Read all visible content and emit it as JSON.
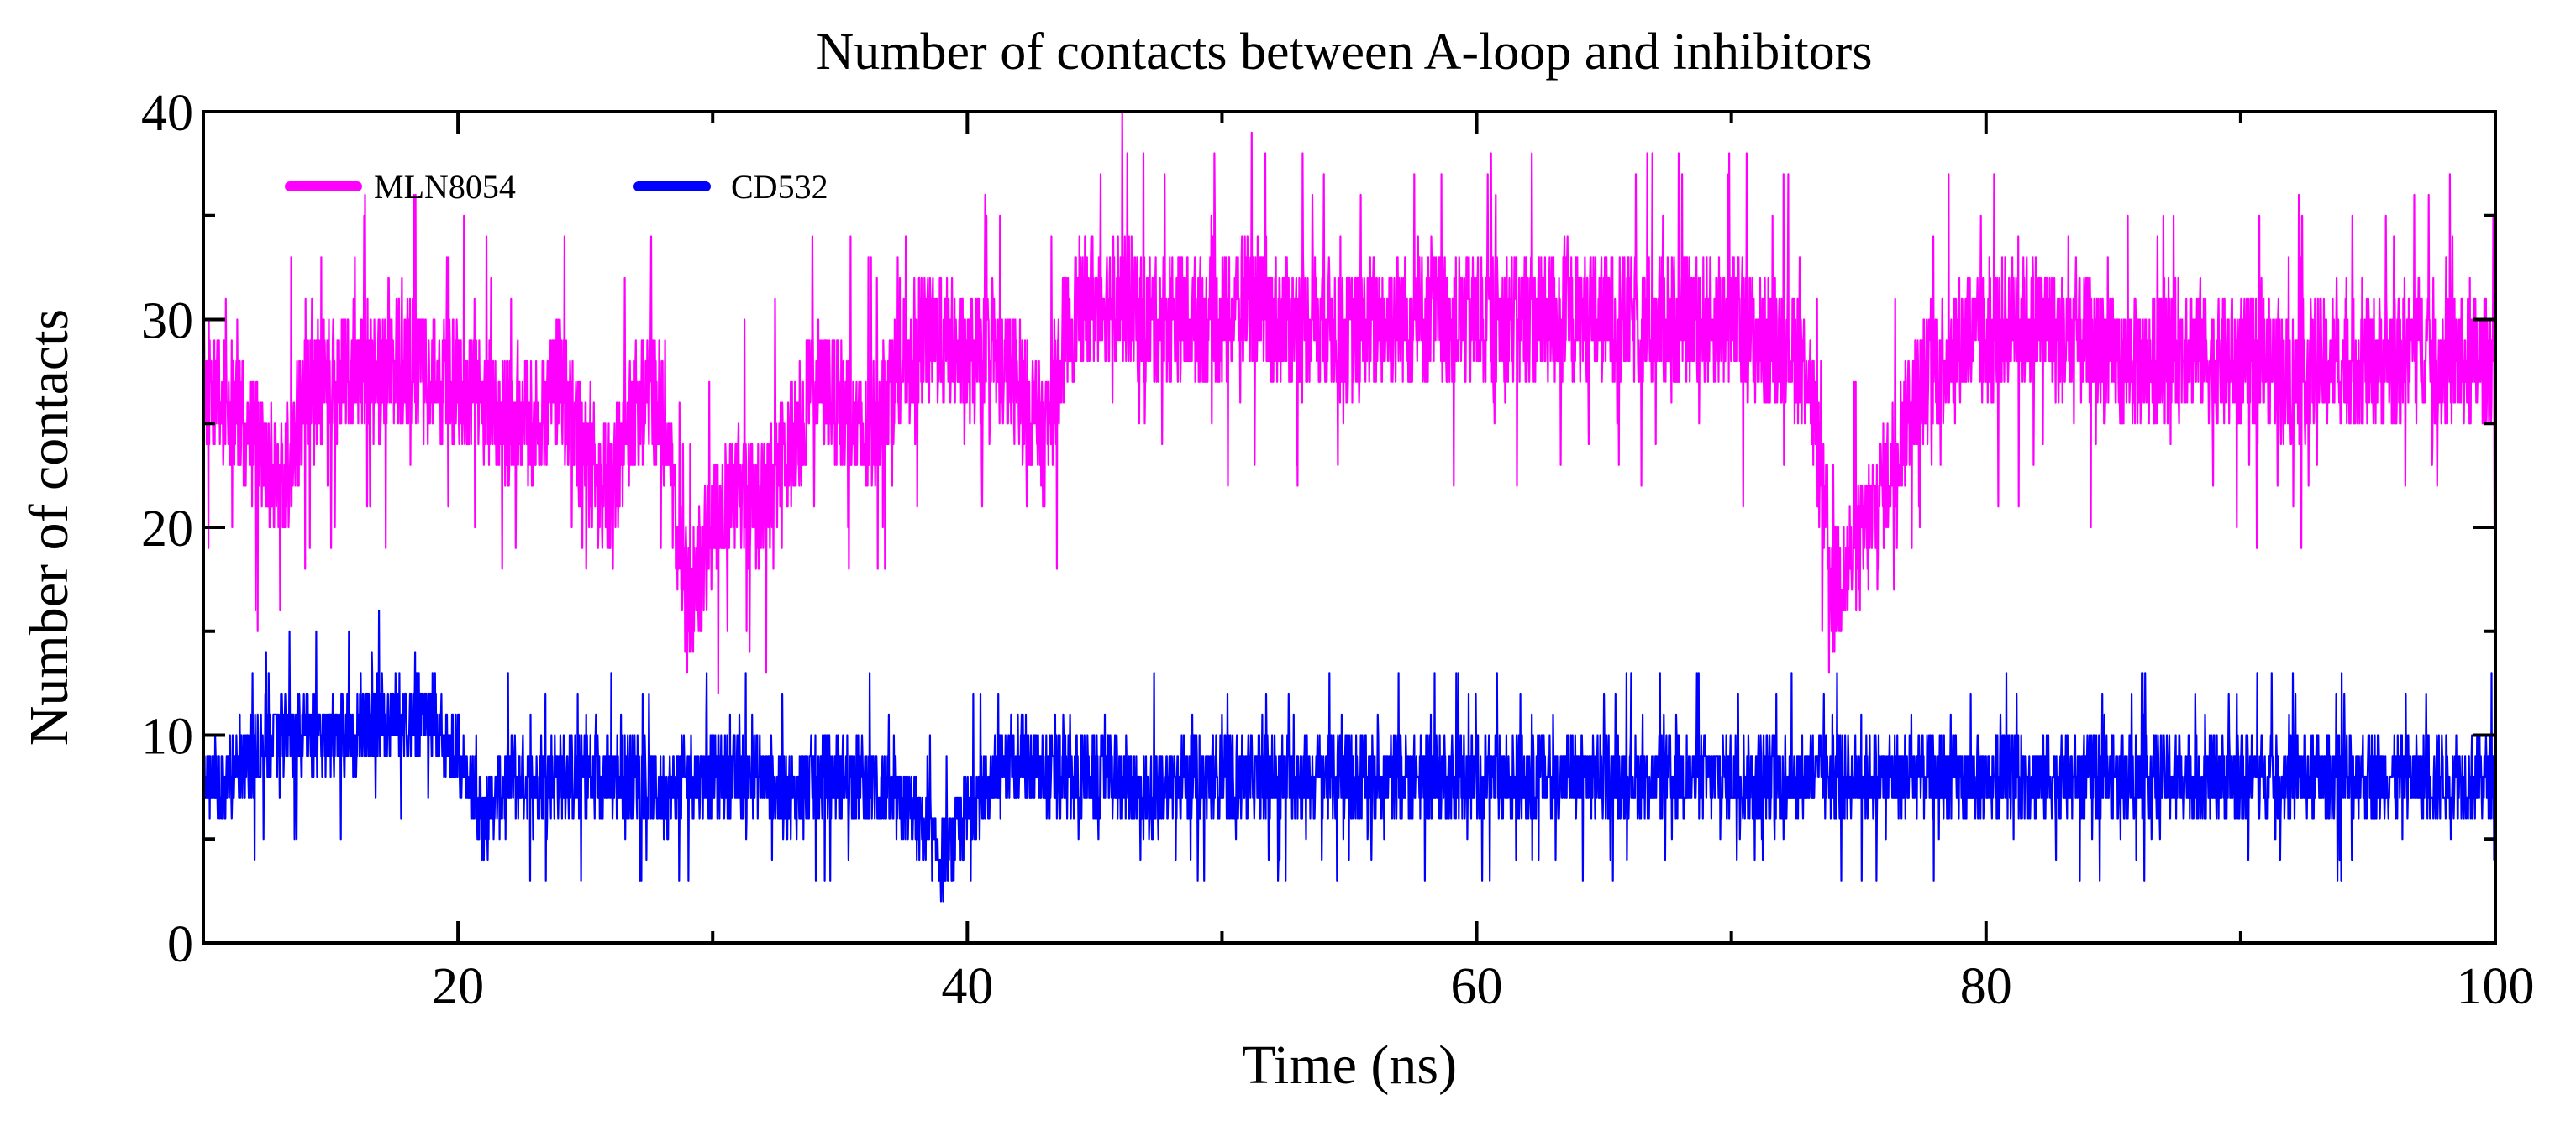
{
  "chart_data": {
    "type": "line",
    "title": "Number of contacts between A-loop and inhibitors",
    "xlabel": "Time (ns)",
    "ylabel": "Number of contacts",
    "xlim": [
      10,
      100
    ],
    "ylim": [
      0,
      40
    ],
    "x_ticks": [
      20,
      40,
      60,
      80,
      100
    ],
    "y_ticks": [
      0,
      10,
      20,
      30,
      40
    ],
    "legend_position": "top-left",
    "grid": false,
    "series": [
      {
        "name": "MLN8054",
        "color": "#ff00ff",
        "x": [
          10,
          11,
          12,
          13,
          14,
          15,
          16,
          17,
          18,
          19,
          20,
          21,
          22,
          23,
          24,
          25,
          26,
          27,
          28,
          29,
          30,
          31,
          32,
          33,
          34,
          35,
          36,
          37,
          38,
          39,
          40,
          41,
          42,
          43,
          44,
          45,
          46,
          47,
          48,
          49,
          50,
          51,
          52,
          53,
          54,
          55,
          56,
          57,
          58,
          59,
          60,
          61,
          62,
          63,
          64,
          65,
          66,
          67,
          68,
          69,
          70,
          71,
          72,
          73,
          74,
          75,
          76,
          77,
          78,
          79,
          80,
          81,
          82,
          83,
          84,
          85,
          86,
          87,
          88,
          89,
          90,
          91,
          92,
          93,
          94,
          95,
          96,
          97,
          98,
          99,
          100
        ],
        "values": [
          27,
          26,
          24,
          22,
          26,
          27,
          28,
          27,
          28,
          27,
          27,
          26,
          25,
          25,
          27,
          23,
          22,
          26,
          26,
          16,
          20,
          22,
          21,
          24,
          27,
          26,
          24,
          27,
          29,
          29,
          28,
          28,
          27,
          24,
          30,
          31,
          31,
          30,
          30,
          30,
          30,
          31,
          30,
          30,
          30,
          29,
          30,
          30,
          30,
          30,
          30,
          30,
          30,
          30,
          30,
          30,
          30,
          30,
          30,
          30,
          30,
          29,
          29,
          28,
          17,
          19,
          22,
          26,
          28,
          29,
          29,
          30,
          30,
          29,
          29,
          28,
          28,
          28,
          29,
          28,
          28,
          28,
          27,
          28,
          28,
          28,
          28,
          29,
          28,
          28,
          28
        ]
      },
      {
        "name": "CD532",
        "color": "#0000ff",
        "x": [
          10,
          11,
          12,
          13,
          14,
          15,
          16,
          17,
          18,
          19,
          20,
          21,
          22,
          23,
          24,
          25,
          26,
          27,
          28,
          29,
          30,
          31,
          32,
          33,
          34,
          35,
          36,
          37,
          38,
          39,
          40,
          41,
          42,
          43,
          44,
          45,
          46,
          47,
          48,
          49,
          50,
          51,
          52,
          53,
          54,
          55,
          56,
          57,
          58,
          59,
          60,
          61,
          62,
          63,
          64,
          65,
          66,
          67,
          68,
          69,
          70,
          71,
          72,
          73,
          74,
          75,
          76,
          77,
          78,
          79,
          80,
          81,
          82,
          83,
          84,
          85,
          86,
          87,
          88,
          89,
          90,
          91,
          92,
          93,
          94,
          95,
          96,
          97,
          98,
          99,
          100
        ],
        "values": [
          8,
          8,
          9,
          10,
          10,
          10,
          10,
          11,
          11,
          11,
          9,
          6,
          8,
          8,
          8,
          8,
          8,
          8,
          7,
          8,
          8,
          8,
          8,
          7,
          8,
          8,
          8,
          7,
          6,
          4,
          6,
          8,
          9,
          8,
          8,
          8,
          8,
          7,
          8,
          8,
          8,
          8,
          8,
          8,
          8,
          8,
          8,
          8,
          8,
          8,
          8,
          8,
          8,
          8,
          8,
          8,
          8,
          8,
          8,
          8,
          8,
          8,
          8,
          8,
          8,
          8,
          8,
          8,
          8,
          8,
          8,
          8,
          8,
          8,
          8,
          8,
          8,
          8,
          8,
          8,
          8,
          8,
          8,
          8,
          8,
          8,
          8,
          8,
          8,
          8,
          8
        ]
      }
    ]
  }
}
